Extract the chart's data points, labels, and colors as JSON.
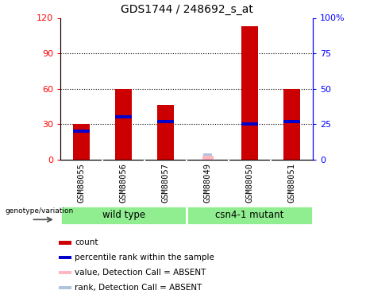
{
  "title": "GDS1744 / 248692_s_at",
  "samples": [
    "GSM88055",
    "GSM88056",
    "GSM88057",
    "GSM88049",
    "GSM88050",
    "GSM88051"
  ],
  "count_values": [
    30,
    60,
    46,
    0,
    113,
    60
  ],
  "percentile_values": [
    24,
    36,
    32,
    0,
    30,
    32
  ],
  "absent_indices": [
    3
  ],
  "absent_rank_value": 3,
  "group_labels": [
    "wild type",
    "csn4-1 mutant"
  ],
  "ylim_left": [
    0,
    120
  ],
  "ylim_right": [
    0,
    100
  ],
  "yticks_left": [
    0,
    30,
    60,
    90,
    120
  ],
  "yticks_right": [
    0,
    25,
    50,
    75,
    100
  ],
  "yticklabels_right": [
    "0",
    "25",
    "50",
    "75",
    "100%"
  ],
  "dotted_lines": [
    30,
    60,
    90
  ],
  "bar_color": "#CC0000",
  "percentile_color": "#0000CC",
  "absent_val_color": "#FFB6C1",
  "absent_rank_color": "#B0C4DE",
  "bar_width": 0.4,
  "group_color": "#90EE90",
  "sample_bg": "#C8C8C8",
  "legend": [
    {
      "label": "count",
      "color": "#CC0000"
    },
    {
      "label": "percentile rank within the sample",
      "color": "#0000CC"
    },
    {
      "label": "value, Detection Call = ABSENT",
      "color": "#FFB6C1"
    },
    {
      "label": "rank, Detection Call = ABSENT",
      "color": "#B0C4DE"
    }
  ]
}
